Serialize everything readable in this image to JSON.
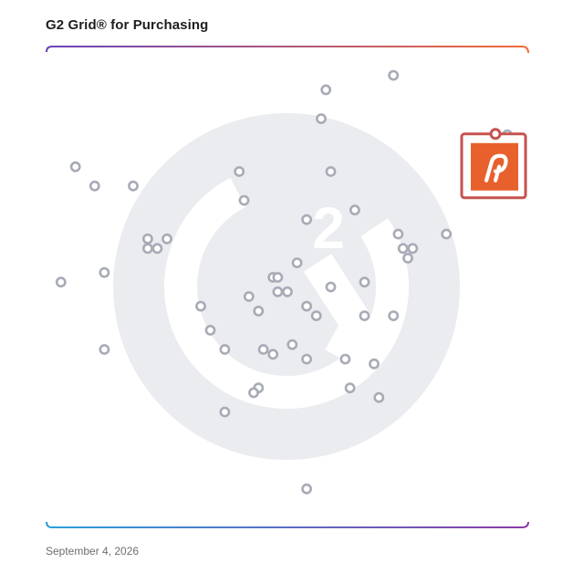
{
  "title": "G2 Grid® for Purchasing",
  "date": "September 4, 2026",
  "colors": {
    "dot_stroke": "#a7abb6",
    "watermark": "#ebecef",
    "highlight_border": "#c6524f",
    "highlight_logo_bg": "#e8612c",
    "gradient_top_left": "#6c43ba",
    "gradient_top_right": "#f26b3a",
    "gradient_bottom_left": "#2aa0dc",
    "gradient_bottom_right": "#8a3aa8"
  },
  "icons": {
    "watermark": "g2-logo-watermark-icon",
    "highlight": "product-logo-icon"
  },
  "chart_data": {
    "type": "scatter",
    "title": "G2 Grid® for Purchasing",
    "xlabel": "",
    "ylabel": "",
    "xlim": [
      0,
      100
    ],
    "ylim": [
      0,
      100
    ],
    "grid": "quadrant dividers at midpoint",
    "highlight": {
      "x": 93,
      "y": 75,
      "label_icon": "product-logo-icon"
    },
    "points": [
      {
        "x": 72,
        "y": 94
      },
      {
        "x": 58,
        "y": 91
      },
      {
        "x": 57,
        "y": 85
      },
      {
        "x": 6,
        "y": 75
      },
      {
        "x": 10,
        "y": 71
      },
      {
        "x": 18,
        "y": 71
      },
      {
        "x": 40,
        "y": 74
      },
      {
        "x": 59,
        "y": 74
      },
      {
        "x": 41,
        "y": 68
      },
      {
        "x": 64,
        "y": 66
      },
      {
        "x": 54,
        "y": 64
      },
      {
        "x": 21,
        "y": 60
      },
      {
        "x": 25,
        "y": 60
      },
      {
        "x": 21,
        "y": 58
      },
      {
        "x": 23,
        "y": 58
      },
      {
        "x": 73,
        "y": 61
      },
      {
        "x": 83,
        "y": 61
      },
      {
        "x": 74,
        "y": 58
      },
      {
        "x": 76,
        "y": 58
      },
      {
        "x": 75,
        "y": 56
      },
      {
        "x": 52,
        "y": 55
      },
      {
        "x": 12,
        "y": 53
      },
      {
        "x": 3,
        "y": 51
      },
      {
        "x": 47,
        "y": 52
      },
      {
        "x": 48,
        "y": 52
      },
      {
        "x": 66,
        "y": 51
      },
      {
        "x": 59,
        "y": 50
      },
      {
        "x": 48,
        "y": 49
      },
      {
        "x": 50,
        "y": 49
      },
      {
        "x": 42,
        "y": 48
      },
      {
        "x": 32,
        "y": 46
      },
      {
        "x": 44,
        "y": 45
      },
      {
        "x": 54,
        "y": 46
      },
      {
        "x": 56,
        "y": 44
      },
      {
        "x": 66,
        "y": 44
      },
      {
        "x": 72,
        "y": 44
      },
      {
        "x": 34,
        "y": 41
      },
      {
        "x": 51,
        "y": 38
      },
      {
        "x": 12,
        "y": 37
      },
      {
        "x": 37,
        "y": 37
      },
      {
        "x": 45,
        "y": 37
      },
      {
        "x": 47,
        "y": 36
      },
      {
        "x": 54,
        "y": 35
      },
      {
        "x": 62,
        "y": 35
      },
      {
        "x": 68,
        "y": 34
      },
      {
        "x": 44,
        "y": 29
      },
      {
        "x": 43,
        "y": 28
      },
      {
        "x": 63,
        "y": 29
      },
      {
        "x": 69,
        "y": 27
      },
      {
        "x": 37,
        "y": 24
      },
      {
        "x": 54,
        "y": 8
      }
    ]
  }
}
